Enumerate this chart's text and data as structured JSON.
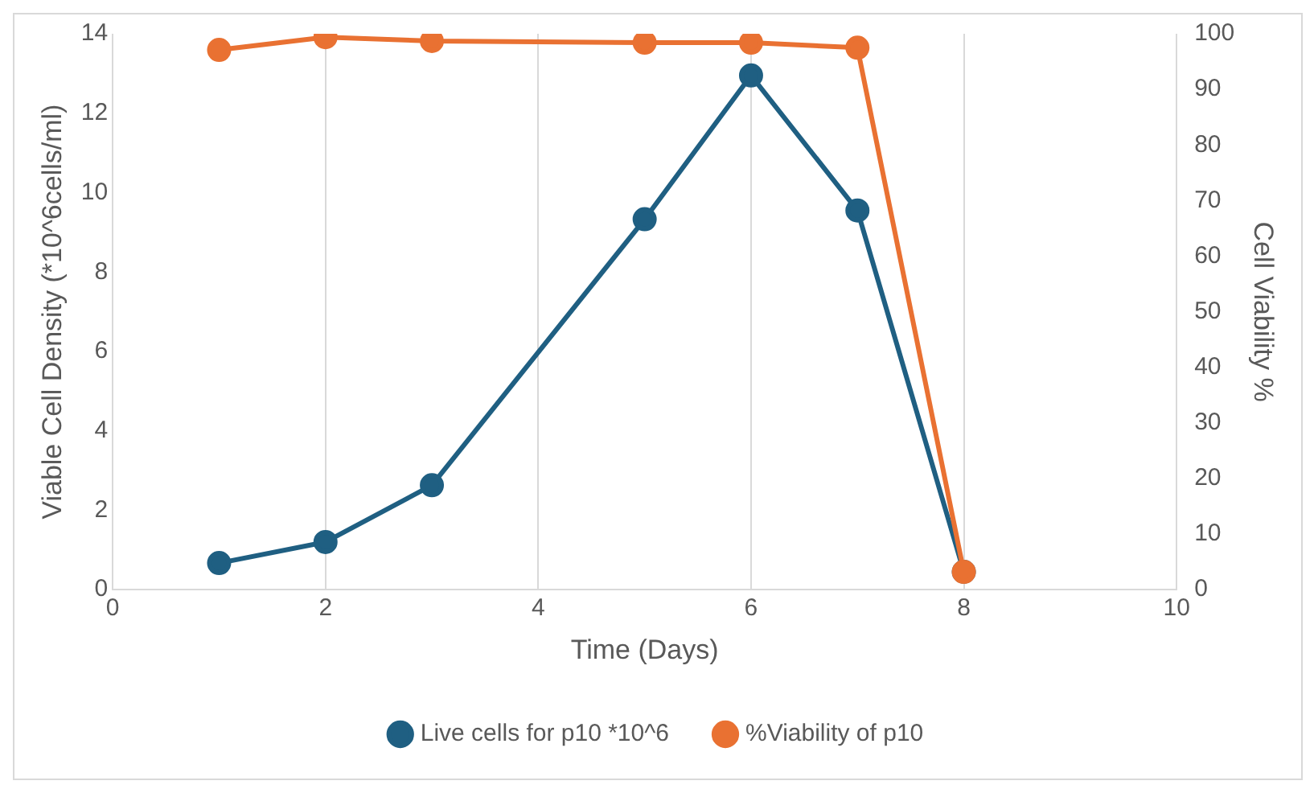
{
  "chart_data": {
    "type": "line",
    "xlabel": "Time (Days)",
    "ylabel": "Viable Cell Density (*10^6cells/ml)",
    "y2label": "Cell Viability %",
    "x": [
      1,
      2,
      3,
      5,
      6,
      7,
      8
    ],
    "series": [
      {
        "name": "Live cells for p10 *10^6",
        "color": "#1f5f82",
        "values": [
          0.67,
          1.2,
          2.63,
          9.33,
          12.95,
          9.55,
          0.45
        ]
      },
      {
        "name": "%Viability of p10",
        "color": "#e97132",
        "axis": "y2",
        "values": [
          97.1,
          99.4,
          98.7,
          98.4,
          98.4,
          97.5,
          3.2
        ]
      }
    ],
    "xlim": [
      0,
      10
    ],
    "xticks": [
      0,
      2,
      4,
      6,
      8,
      10
    ],
    "ylim": [
      0,
      14
    ],
    "yticks": [
      0,
      2,
      4,
      6,
      8,
      10,
      12,
      14
    ],
    "y2lim": [
      0,
      100
    ],
    "y2ticks": [
      0,
      10,
      20,
      30,
      40,
      50,
      60,
      70,
      80,
      90,
      100
    ],
    "grid": "x",
    "legend": "bottom",
    "marker": "circle",
    "line_style": "solid"
  }
}
